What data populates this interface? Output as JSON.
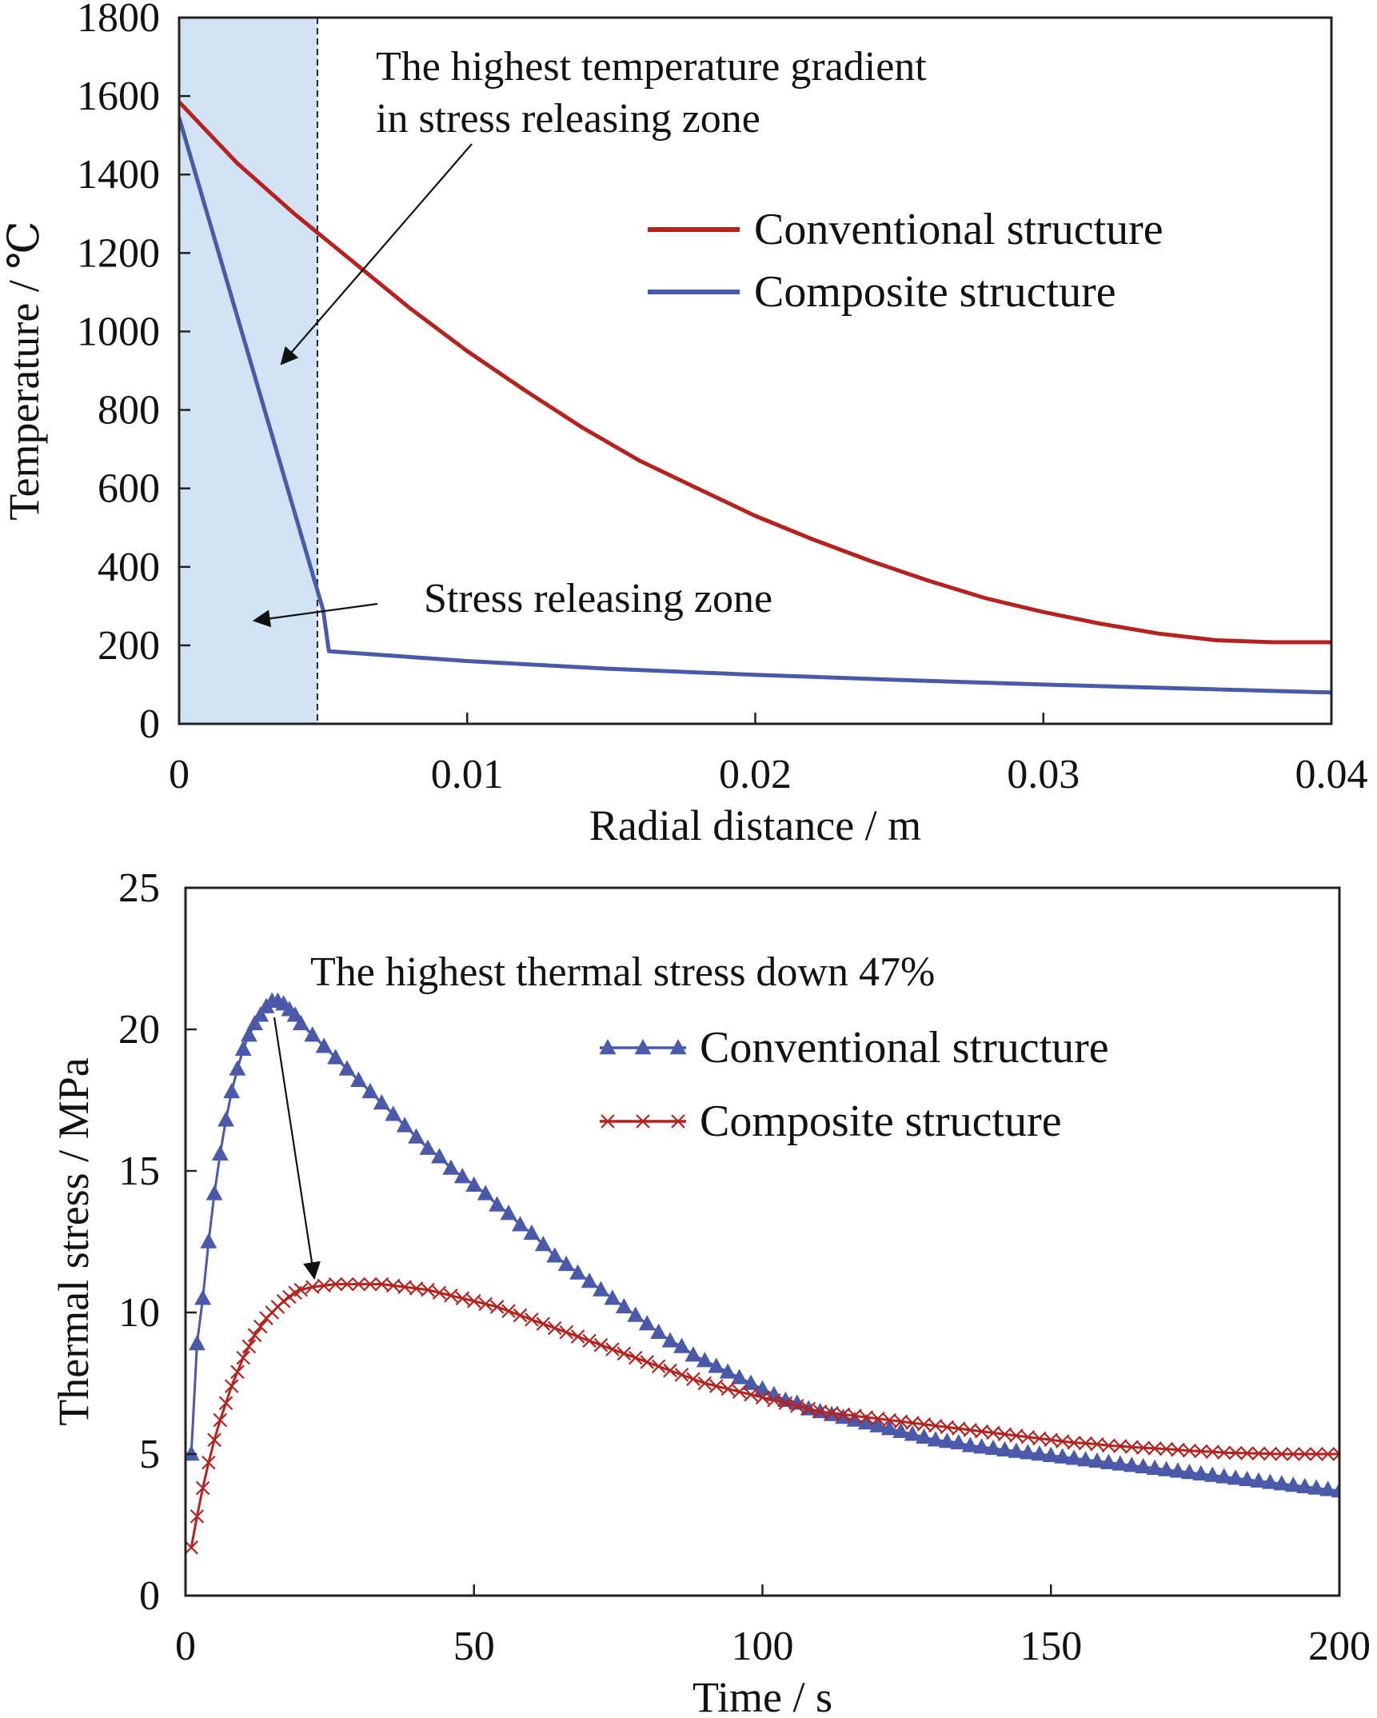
{
  "chart_data": [
    {
      "type": "line",
      "xlabel": "Radial distance / m",
      "ylabel": "Temperature / ℃",
      "xlim": [
        0,
        0.04
      ],
      "ylim": [
        0,
        1800
      ],
      "xticks": [
        0,
        0.01,
        0.02,
        0.03,
        0.04
      ],
      "xtick_labels": [
        "0",
        "0.01",
        "0.02",
        "0.03",
        "0.04"
      ],
      "yticks": [
        0,
        200,
        400,
        600,
        800,
        1000,
        1200,
        1400,
        1600,
        1800
      ],
      "ytick_labels": [
        "0",
        "200",
        "400",
        "600",
        "800",
        "1000",
        "1200",
        "1400",
        "1600",
        "1800"
      ],
      "grid": false,
      "legend_position": "right",
      "shaded_region": {
        "x_start": 0,
        "x_end": 0.0048,
        "color": "#d2e3f5"
      },
      "annotations": [
        "The highest temperature gradient",
        "in stress releasing zone",
        "Stress releasing zone"
      ],
      "series": [
        {
          "name": "Conventional structure",
          "color": "#b5221f",
          "x": [
            0,
            0.002,
            0.004,
            0.005,
            0.006,
            0.008,
            0.01,
            0.012,
            0.014,
            0.016,
            0.018,
            0.02,
            0.022,
            0.024,
            0.026,
            0.028,
            0.03,
            0.032,
            0.034,
            0.036,
            0.038,
            0.04
          ],
          "y": [
            1585,
            1430,
            1300,
            1240,
            1180,
            1060,
            950,
            850,
            755,
            670,
            600,
            530,
            470,
            415,
            365,
            320,
            285,
            255,
            230,
            213,
            208,
            208
          ]
        },
        {
          "name": "Composite structure",
          "color": "#4a5aa8",
          "x": [
            0,
            0.005,
            0.0052,
            0.01,
            0.015,
            0.02,
            0.025,
            0.03,
            0.035,
            0.04
          ],
          "y": [
            1545,
            290,
            185,
            160,
            140,
            125,
            112,
            100,
            90,
            80
          ]
        }
      ]
    },
    {
      "type": "line",
      "xlabel": "Time / s",
      "ylabel": "Thermal stress / MPa",
      "xlim": [
        0,
        200
      ],
      "ylim": [
        0,
        25
      ],
      "xticks": [
        0,
        50,
        100,
        150,
        200
      ],
      "xtick_labels": [
        "0",
        "50",
        "100",
        "150",
        "200"
      ],
      "yticks": [
        0,
        5,
        10,
        15,
        20,
        25
      ],
      "ytick_labels": [
        "0",
        "5",
        "10",
        "15",
        "20",
        "25"
      ],
      "grid": false,
      "legend_position": "top-right",
      "annotations": [
        "The highest thermal stress down 47%"
      ],
      "series": [
        {
          "name": "Conventional structure",
          "color": "#4a5aa8",
          "marker": "triangle",
          "x": [
            1,
            2,
            3,
            4,
            5,
            6,
            7,
            8,
            9,
            10,
            11,
            12,
            13,
            14,
            15,
            16,
            17,
            18,
            19,
            20,
            22,
            24,
            26,
            28,
            30,
            32,
            34,
            36,
            38,
            40,
            42,
            44,
            46,
            48,
            50,
            52,
            54,
            56,
            58,
            60,
            62,
            64,
            66,
            68,
            70,
            72,
            74,
            76,
            78,
            80,
            82,
            84,
            86,
            88,
            90,
            92,
            94,
            96,
            98,
            100,
            102,
            104,
            106,
            108,
            110,
            112,
            114,
            116,
            118,
            120,
            122,
            124,
            126,
            128,
            130,
            132,
            134,
            136,
            138,
            140,
            142,
            144,
            146,
            148,
            150,
            152,
            154,
            156,
            158,
            160,
            162,
            164,
            166,
            168,
            170,
            172,
            174,
            176,
            178,
            180,
            182,
            184,
            186,
            188,
            190,
            192,
            194,
            196,
            198,
            200
          ],
          "y": [
            5,
            8.9,
            10.5,
            12.5,
            14.2,
            15.6,
            16.8,
            17.8,
            18.6,
            19.3,
            19.8,
            20.2,
            20.5,
            20.8,
            21.0,
            21.0,
            20.9,
            20.7,
            20.5,
            20.2,
            19.8,
            19.4,
            19.0,
            18.6,
            18.2,
            17.8,
            17.4,
            17.0,
            16.6,
            16.2,
            15.8,
            15.5,
            15.1,
            14.8,
            14.5,
            14.2,
            13.8,
            13.5,
            13.1,
            12.8,
            12.4,
            12.0,
            11.7,
            11.4,
            11.1,
            10.8,
            10.5,
            10.2,
            9.9,
            9.6,
            9.3,
            9.0,
            8.8,
            8.5,
            8.3,
            8.1,
            7.9,
            7.7,
            7.5,
            7.3,
            7.1,
            6.9,
            6.8,
            6.6,
            6.5,
            6.4,
            6.3,
            6.2,
            6.1,
            6.0,
            5.9,
            5.8,
            5.7,
            5.6,
            5.5,
            5.45,
            5.4,
            5.3,
            5.25,
            5.2,
            5.15,
            5.1,
            5.05,
            5.0,
            4.95,
            4.9,
            4.85,
            4.8,
            4.75,
            4.7,
            4.65,
            4.6,
            4.55,
            4.5,
            4.45,
            4.4,
            4.35,
            4.3,
            4.25,
            4.2,
            4.15,
            4.1,
            4.05,
            4.0,
            3.95,
            3.9,
            3.85,
            3.8,
            3.75,
            3.7
          ]
        },
        {
          "name": "Composite structure",
          "color": "#b5221f",
          "marker": "x",
          "x": [
            1,
            2,
            3,
            4,
            5,
            6,
            7,
            8,
            9,
            10,
            11,
            12,
            13,
            14,
            15,
            16,
            17,
            18,
            19,
            20,
            22,
            24,
            26,
            28,
            30,
            32,
            34,
            36,
            38,
            40,
            42,
            44,
            46,
            48,
            50,
            52,
            54,
            56,
            58,
            60,
            62,
            64,
            66,
            68,
            70,
            72,
            74,
            76,
            78,
            80,
            82,
            84,
            86,
            88,
            90,
            92,
            94,
            96,
            98,
            100,
            102,
            104,
            106,
            108,
            110,
            112,
            114,
            116,
            118,
            120,
            122,
            124,
            126,
            128,
            130,
            132,
            134,
            136,
            138,
            140,
            142,
            144,
            146,
            148,
            150,
            152,
            154,
            156,
            158,
            160,
            162,
            164,
            166,
            168,
            170,
            172,
            174,
            176,
            178,
            180,
            182,
            184,
            186,
            188,
            190,
            192,
            194,
            196,
            198,
            200
          ],
          "y": [
            1.7,
            2.8,
            3.8,
            4.7,
            5.5,
            6.2,
            6.8,
            7.4,
            7.9,
            8.4,
            8.8,
            9.2,
            9.5,
            9.8,
            10.0,
            10.2,
            10.4,
            10.55,
            10.7,
            10.8,
            10.9,
            10.95,
            11.0,
            11.0,
            11.0,
            11.0,
            11.0,
            10.95,
            10.9,
            10.85,
            10.8,
            10.7,
            10.6,
            10.5,
            10.4,
            10.3,
            10.2,
            10.05,
            9.9,
            9.75,
            9.6,
            9.45,
            9.3,
            9.15,
            9.0,
            8.85,
            8.7,
            8.55,
            8.4,
            8.25,
            8.1,
            7.95,
            7.8,
            7.65,
            7.5,
            7.4,
            7.3,
            7.2,
            7.1,
            7.0,
            6.9,
            6.8,
            6.7,
            6.6,
            6.5,
            6.45,
            6.4,
            6.35,
            6.3,
            6.25,
            6.2,
            6.15,
            6.1,
            6.05,
            6.0,
            5.95,
            5.9,
            5.85,
            5.8,
            5.75,
            5.7,
            5.65,
            5.6,
            5.55,
            5.5,
            5.45,
            5.4,
            5.38,
            5.35,
            5.3,
            5.28,
            5.25,
            5.22,
            5.2,
            5.18,
            5.15,
            5.12,
            5.1,
            5.08,
            5.05,
            5.04,
            5.03,
            5.02,
            5.01,
            5.0,
            5.0,
            5.0,
            5.0,
            5.0,
            5.0
          ]
        }
      ]
    }
  ]
}
